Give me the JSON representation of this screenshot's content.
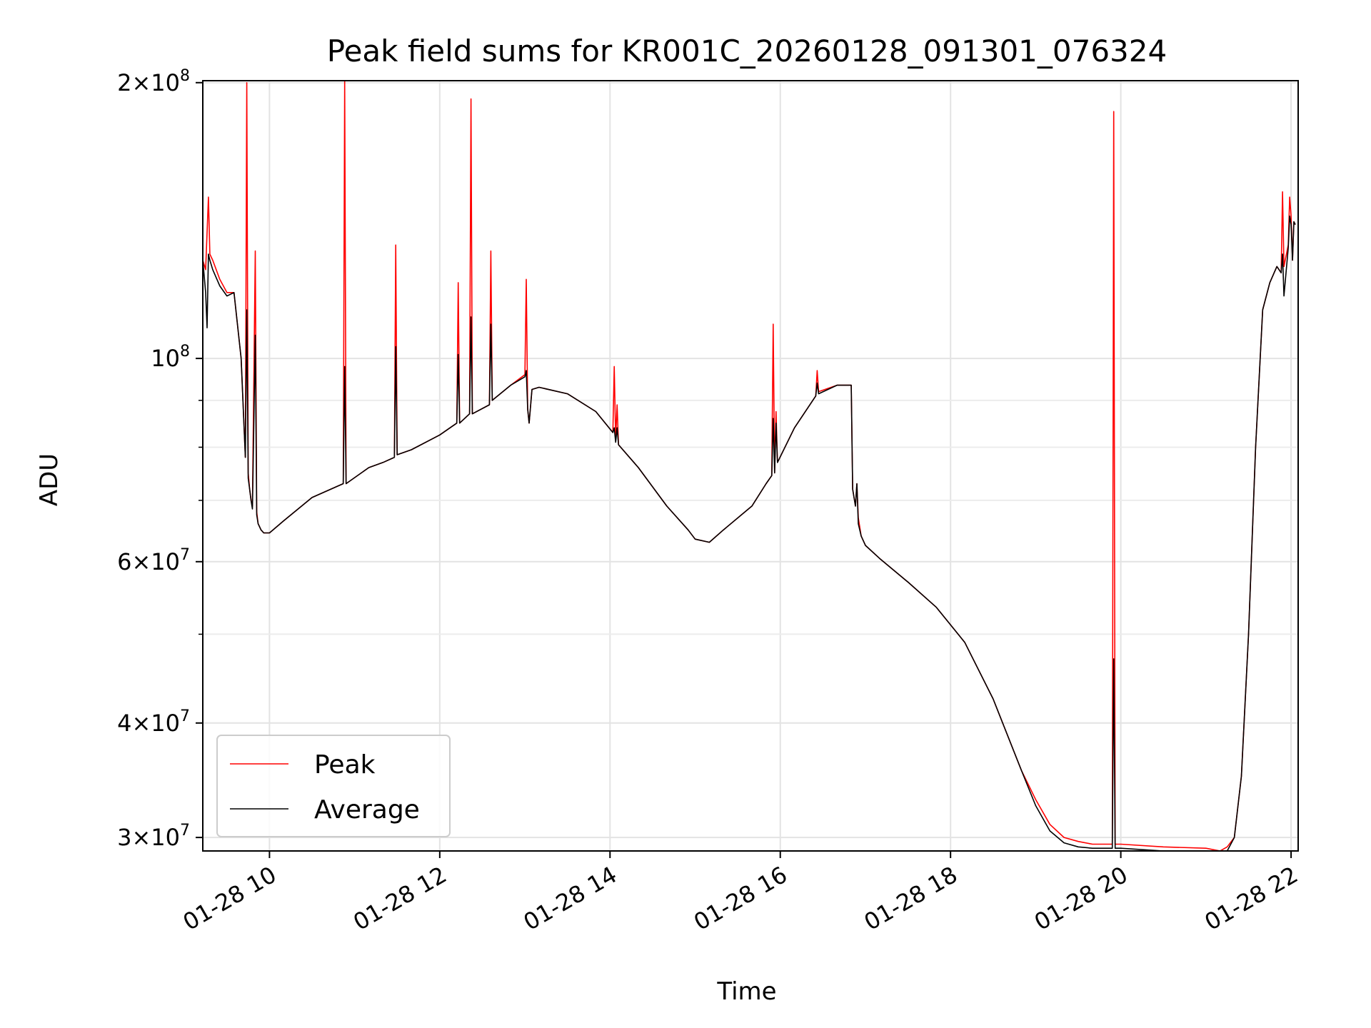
{
  "chart_data": {
    "type": "line",
    "title": "Peak field sums for KR001C_20260128_091301_076324",
    "xlabel": "Time",
    "ylabel": "ADU",
    "y_scale": "log",
    "xlim": [
      "01-28 09:13",
      "01-28 22:05"
    ],
    "ylim": [
      29000000,
      201000000
    ],
    "grid": true,
    "legend_position": "lower-left",
    "x_ticks": [
      {
        "time": "01-28 10:00",
        "label": "01-28 10"
      },
      {
        "time": "01-28 12:00",
        "label": "01-28 12"
      },
      {
        "time": "01-28 14:00",
        "label": "01-28 14"
      },
      {
        "time": "01-28 16:00",
        "label": "01-28 16"
      },
      {
        "time": "01-28 18:00",
        "label": "01-28 18"
      },
      {
        "time": "01-28 20:00",
        "label": "01-28 20"
      },
      {
        "time": "01-28 22:00",
        "label": "01-28 22"
      }
    ],
    "y_ticks": [
      {
        "value": 30000000,
        "mantissa": "3",
        "exponent": "7"
      },
      {
        "value": 40000000,
        "mantissa": "4",
        "exponent": "7"
      },
      {
        "value": 60000000,
        "mantissa": "6",
        "exponent": "7"
      },
      {
        "value": 100000000,
        "mantissa": "",
        "exponent": "8"
      },
      {
        "value": 200000000,
        "mantissa": "2",
        "exponent": "8"
      }
    ],
    "y_minor_ticks": [
      50000000,
      70000000,
      80000000,
      90000000
    ],
    "series": [
      {
        "name": "Peak",
        "color": "#ff0000",
        "x": [
          "01-28 09:13",
          "01-28 09:15",
          "01-28 09:17",
          "01-28 09:18",
          "01-28 09:20",
          "01-28 09:25",
          "01-28 09:30",
          "01-28 09:35",
          "01-28 09:40",
          "01-28 09:43",
          "01-28 09:44",
          "01-28 09:45",
          "01-28 09:46",
          "01-28 09:47",
          "01-28 09:48",
          "01-28 09:50",
          "01-28 09:51",
          "01-28 09:52",
          "01-28 09:53",
          "01-28 09:54",
          "01-28 09:56",
          "01-28 10:00",
          "01-28 10:10",
          "01-28 10:30",
          "01-28 10:52",
          "01-28 10:53",
          "01-28 10:54",
          "01-28 11:10",
          "01-28 11:20",
          "01-28 11:28",
          "01-28 11:29",
          "01-28 11:30",
          "01-28 11:40",
          "01-28 12:00",
          "01-28 12:12",
          "01-28 12:13",
          "01-28 12:14",
          "01-28 12:21",
          "01-28 12:22",
          "01-28 12:23",
          "01-28 12:35",
          "01-28 12:36",
          "01-28 12:37",
          "01-28 12:50",
          "01-28 13:00",
          "01-28 13:01",
          "01-28 13:02",
          "01-28 13:03",
          "01-28 13:05",
          "01-28 13:10",
          "01-28 13:30",
          "01-28 13:50",
          "01-28 14:02",
          "01-28 14:03",
          "01-28 14:04",
          "01-28 14:05",
          "01-28 14:06",
          "01-28 14:20",
          "01-28 14:40",
          "01-28 14:55",
          "01-28 15:00",
          "01-28 15:10",
          "01-28 15:20",
          "01-28 15:40",
          "01-28 15:50",
          "01-28 15:54",
          "01-28 15:55",
          "01-28 15:56",
          "01-28 15:57",
          "01-28 15:58",
          "01-28 16:10",
          "01-28 16:25",
          "01-28 16:26",
          "01-28 16:27",
          "01-28 16:40",
          "01-28 16:50",
          "01-28 16:51",
          "01-28 16:53",
          "01-28 16:54",
          "01-28 16:55",
          "01-28 16:57",
          "01-28 17:00",
          "01-28 17:10",
          "01-28 17:30",
          "01-28 17:50",
          "01-28 18:10",
          "01-28 18:30",
          "01-28 18:50",
          "01-28 19:00",
          "01-28 19:10",
          "01-28 19:20",
          "01-28 19:30",
          "01-28 19:40",
          "01-28 19:54",
          "01-28 19:55",
          "01-28 19:56",
          "01-28 20:00",
          "01-28 20:30",
          "01-28 21:00",
          "01-28 21:10",
          "01-28 21:15",
          "01-28 21:20",
          "01-28 21:25",
          "01-28 21:30",
          "01-28 21:35",
          "01-28 21:40",
          "01-28 21:45",
          "01-28 21:50",
          "01-28 21:53",
          "01-28 21:54",
          "01-28 21:55",
          "01-28 21:58",
          "01-28 21:59",
          "01-28 22:00",
          "01-28 22:01",
          "01-28 22:02",
          "01-28 22:03"
        ],
        "y": [
          128000000,
          125000000,
          150000000,
          130000000,
          128000000,
          122000000,
          118000000,
          118000000,
          100000000,
          78000000,
          200000000,
          75000000,
          72000000,
          70000000,
          69000000,
          131000000,
          68000000,
          66000000,
          65500000,
          65000000,
          64500000,
          64500000,
          66500000,
          70500000,
          73000000,
          201000000,
          73000000,
          76000000,
          77000000,
          78000000,
          133000000,
          78500000,
          79500000,
          82500000,
          85000000,
          121000000,
          85000000,
          87000000,
          192000000,
          87000000,
          89000000,
          131000000,
          90000000,
          93500000,
          96000000,
          122000000,
          88000000,
          85000000,
          92500000,
          93000000,
          91500000,
          87500000,
          83000000,
          98000000,
          81500000,
          89000000,
          80500000,
          76000000,
          69000000,
          65000000,
          63500000,
          63000000,
          65000000,
          69000000,
          73000000,
          74500000,
          109000000,
          75000000,
          87500000,
          77000000,
          84000000,
          91000000,
          97000000,
          92000000,
          93500000,
          93500000,
          72000000,
          69000000,
          73000000,
          67000000,
          64000000,
          62500000,
          60500000,
          57000000,
          53500000,
          49000000,
          42500000,
          35500000,
          33000000,
          31000000,
          30000000,
          29700000,
          29500000,
          29500000,
          186000000,
          29500000,
          29500000,
          29300000,
          29200000,
          29000000,
          29300000,
          30000000,
          35000000,
          50000000,
          80000000,
          113000000,
          121000000,
          126000000,
          124000000,
          152000000,
          126000000,
          133000000,
          150000000,
          143000000,
          128000000,
          141000000,
          140000000
        ]
      },
      {
        "name": "Average",
        "color": "#000000",
        "x": [
          "01-28 09:13",
          "01-28 09:15",
          "01-28 09:16",
          "01-28 09:17",
          "01-28 09:18",
          "01-28 09:20",
          "01-28 09:25",
          "01-28 09:30",
          "01-28 09:35",
          "01-28 09:40",
          "01-28 09:43",
          "01-28 09:44",
          "01-28 09:45",
          "01-28 09:46",
          "01-28 09:47",
          "01-28 09:48",
          "01-28 09:50",
          "01-28 09:51",
          "01-28 09:52",
          "01-28 09:53",
          "01-28 09:54",
          "01-28 09:56",
          "01-28 10:00",
          "01-28 10:10",
          "01-28 10:30",
          "01-28 10:52",
          "01-28 10:53",
          "01-28 10:54",
          "01-28 11:10",
          "01-28 11:20",
          "01-28 11:28",
          "01-28 11:29",
          "01-28 11:30",
          "01-28 11:40",
          "01-28 12:00",
          "01-28 12:12",
          "01-28 12:13",
          "01-28 12:14",
          "01-28 12:21",
          "01-28 12:22",
          "01-28 12:23",
          "01-28 12:35",
          "01-28 12:36",
          "01-28 12:37",
          "01-28 12:50",
          "01-28 13:00",
          "01-28 13:01",
          "01-28 13:02",
          "01-28 13:03",
          "01-28 13:05",
          "01-28 13:10",
          "01-28 13:30",
          "01-28 13:50",
          "01-28 14:02",
          "01-28 14:03",
          "01-28 14:04",
          "01-28 14:05",
          "01-28 14:06",
          "01-28 14:20",
          "01-28 14:40",
          "01-28 14:55",
          "01-28 15:00",
          "01-28 15:10",
          "01-28 15:20",
          "01-28 15:40",
          "01-28 15:50",
          "01-28 15:54",
          "01-28 15:55",
          "01-28 15:56",
          "01-28 15:57",
          "01-28 15:58",
          "01-28 16:10",
          "01-28 16:25",
          "01-28 16:26",
          "01-28 16:27",
          "01-28 16:40",
          "01-28 16:50",
          "01-28 16:51",
          "01-28 16:53",
          "01-28 16:54",
          "01-28 16:55",
          "01-28 16:57",
          "01-28 17:00",
          "01-28 17:10",
          "01-28 17:30",
          "01-28 17:50",
          "01-28 18:10",
          "01-28 18:30",
          "01-28 18:50",
          "01-28 19:00",
          "01-28 19:10",
          "01-28 19:20",
          "01-28 19:30",
          "01-28 19:40",
          "01-28 19:54",
          "01-28 19:55",
          "01-28 19:56",
          "01-28 20:00",
          "01-28 20:30",
          "01-28 21:00",
          "01-28 21:10",
          "01-28 21:15",
          "01-28 21:20",
          "01-28 21:25",
          "01-28 21:30",
          "01-28 21:35",
          "01-28 21:40",
          "01-28 21:45",
          "01-28 21:50",
          "01-28 21:53",
          "01-28 21:54",
          "01-28 21:55",
          "01-28 21:58",
          "01-28 21:59",
          "01-28 22:00",
          "01-28 22:01",
          "01-28 22:02",
          "01-28 22:03"
        ],
        "y": [
          128000000,
          118000000,
          108000000,
          130000000,
          128000000,
          125000000,
          120000000,
          117000000,
          118000000,
          100000000,
          78000000,
          113000000,
          74000000,
          72000000,
          70000000,
          68500000,
          106000000,
          67500000,
          66000000,
          65500000,
          65000000,
          64500000,
          64500000,
          66500000,
          70500000,
          73000000,
          98000000,
          73000000,
          76000000,
          77000000,
          78000000,
          103000000,
          78500000,
          79500000,
          82500000,
          85000000,
          101000000,
          85000000,
          87000000,
          111000000,
          87000000,
          89000000,
          109000000,
          90000000,
          93500000,
          95500000,
          97000000,
          88000000,
          85000000,
          92500000,
          93000000,
          91500000,
          87500000,
          83000000,
          84000000,
          81000000,
          84000000,
          80500000,
          76000000,
          69000000,
          65000000,
          63500000,
          63000000,
          65000000,
          69000000,
          73000000,
          74500000,
          86000000,
          75000000,
          85000000,
          77000000,
          84000000,
          91000000,
          94000000,
          91500000,
          93500000,
          93500000,
          72000000,
          69000000,
          73000000,
          66000000,
          64000000,
          62500000,
          60500000,
          57000000,
          53500000,
          49000000,
          42500000,
          35500000,
          32500000,
          30500000,
          29600000,
          29300000,
          29200000,
          29200000,
          47000000,
          29200000,
          29200000,
          29000000,
          28900000,
          28800000,
          29000000,
          30000000,
          35000000,
          50000000,
          80000000,
          113000000,
          121000000,
          126000000,
          124000000,
          130000000,
          117000000,
          132000000,
          143000000,
          140000000,
          128000000,
          141000000,
          140000000
        ]
      }
    ]
  }
}
